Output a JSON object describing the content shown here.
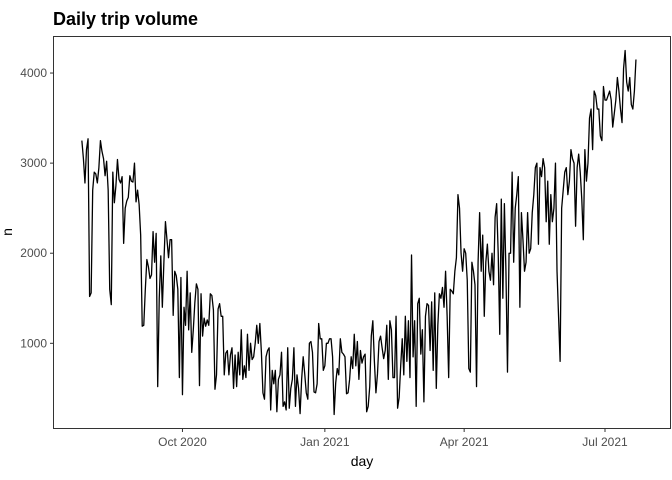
{
  "chart_data": {
    "type": "line",
    "title": "Daily trip volume",
    "xlabel": "day",
    "ylabel": "n",
    "x_range": [
      "2020-07-10",
      "2021-08-12"
    ],
    "ylim": [
      60,
      4400
    ],
    "grid": false,
    "legend": "none",
    "x_ticks": [
      {
        "date": "2020-10-01",
        "label": "Oct 2020"
      },
      {
        "date": "2021-01-01",
        "label": "Jan 2021"
      },
      {
        "date": "2021-04-01",
        "label": "Apr 2021"
      },
      {
        "date": "2021-07-01",
        "label": "Jul 2021"
      }
    ],
    "y_ticks": [
      1000,
      2000,
      3000,
      4000
    ],
    "line_color": "#000000",
    "series": [
      {
        "x_start": "2020-07-28",
        "values": [
          3250,
          3050,
          2780,
          3150,
          3270,
          1520,
          1560,
          2700,
          2900,
          2880,
          2780,
          2950,
          3250,
          3130,
          3050,
          2860,
          3020,
          2700,
          1600,
          1430,
          2900,
          2560,
          2750,
          3040,
          2820,
          2780,
          2850,
          2110,
          2500,
          2580,
          2620,
          2860,
          2800,
          2790,
          3000,
          2570,
          2700,
          2540,
          2200,
          1190,
          1200,
          1600,
          1930,
          1850,
          1720,
          1760,
          2240,
          1900,
          2220,
          520,
          1500,
          1970,
          1400,
          1900,
          2350,
          2150,
          1950,
          2150,
          2150,
          1310,
          1800,
          1750,
          1600,
          620,
          1730,
          430,
          1400,
          1200,
          1800,
          1150,
          1560,
          900,
          1150,
          1450,
          1660,
          1600,
          530,
          1550,
          1080,
          1280,
          1190,
          1260,
          1200,
          1550,
          1530,
          1370,
          490,
          650,
          1380,
          1440,
          1300,
          1300,
          650,
          890,
          920,
          650,
          870,
          950,
          500,
          870,
          520,
          900,
          650,
          1150,
          600,
          750,
          620,
          1100,
          700,
          1000,
          820,
          850,
          1000,
          1200,
          1000,
          1220,
          900,
          450,
          380,
          850,
          920,
          950,
          260,
          700,
          550,
          700,
          240,
          600,
          650,
          900,
          300,
          350,
          260,
          950,
          280,
          500,
          600,
          950,
          300,
          650,
          500,
          220,
          600,
          850,
          660,
          450,
          380,
          1000,
          1020,
          900,
          460,
          450,
          550,
          1220,
          1050,
          1050,
          700,
          750,
          1000,
          1000,
          1050,
          1050,
          850,
          210,
          560,
          720,
          650,
          1050,
          900,
          880,
          850,
          440,
          450,
          600,
          850,
          720,
          1100,
          750,
          1020,
          600,
          920,
          780,
          850,
          880,
          240,
          300,
          520,
          1080,
          1250,
          800,
          450,
          660,
          1020,
          1080,
          950,
          830,
          920,
          1200,
          600,
          1250,
          1150,
          620,
          620,
          1300,
          280,
          400,
          750,
          1050,
          650,
          1300,
          800,
          1250,
          620,
          1980,
          850,
          1250,
          300,
          1440,
          1500,
          880,
          1150,
          350,
          1300,
          1440,
          1420,
          920,
          1460,
          700,
          1560,
          500,
          1200,
          1550,
          1500,
          1620,
          1400,
          1800,
          1300,
          620,
          1600,
          1580,
          1550,
          1800,
          1950,
          2650,
          2500,
          2000,
          1800,
          2050,
          2000,
          1700,
          720,
          680,
          1900,
          1800,
          1650,
          520,
          1900,
          2450,
          1800,
          2200,
          1300,
          1900,
          2100,
          1800,
          1700,
          2000,
          1650,
          2400,
          2550,
          2000,
          1100,
          2600,
          1500,
          2550,
          1800,
          680,
          2000,
          2000,
          2900,
          1900,
          2500,
          2650,
          2850,
          1400,
          2450,
          2150,
          1800,
          1900,
          2450,
          2000,
          2050,
          2450,
          2650,
          2950,
          3000,
          2100,
          2950,
          2850,
          3050,
          2950,
          2350,
          2800,
          2100,
          2650,
          2350,
          2500,
          3000,
          1800,
          1300,
          800,
          2500,
          2700,
          2900,
          2950,
          2650,
          2800,
          3150,
          3050,
          3000,
          2300,
          2950,
          3100,
          2900,
          2600,
          2150,
          3150,
          2800,
          3000,
          3500,
          3600,
          3150,
          3800,
          3750,
          3600,
          3600,
          3300,
          3250,
          3850,
          3700,
          3700,
          3750,
          3800,
          3700,
          3400,
          3550,
          3700,
          3950,
          3800,
          3600,
          3450,
          4050,
          4250,
          3900,
          3800,
          3950,
          3650,
          3600,
          3800,
          4150
        ]
      }
    ]
  }
}
